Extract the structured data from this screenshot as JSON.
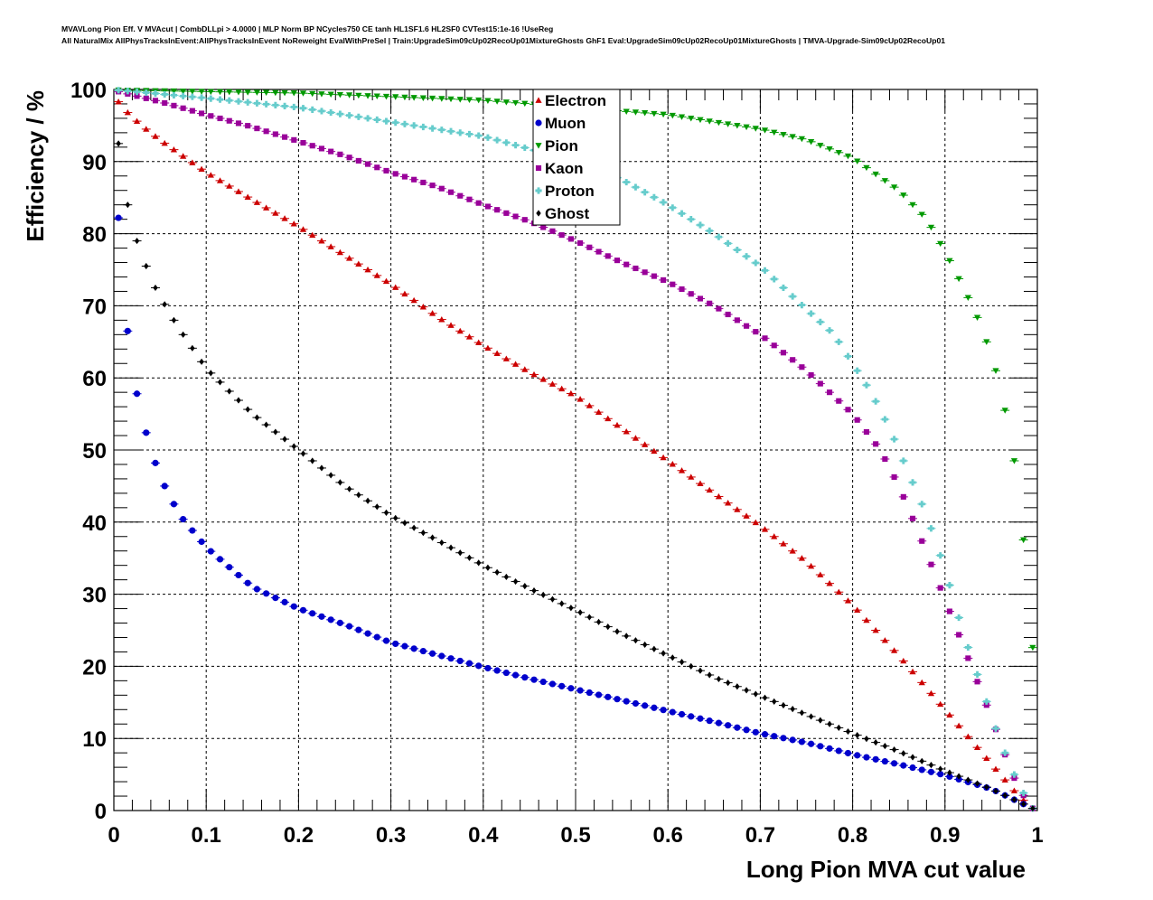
{
  "title_lines": [
    "MVAVLong Pion Eff. V MVAcut | CombDLLpi > 4.0000 | MLP Norm BP NCycles750 CE tanh HL1SF1.6 HL2SF0 CVTest15:1e-16 !UseReg",
    "All NaturalMix AllPhysTracksInEvent:AllPhysTracksInEvent NoReweight EvalWithPreSel | Train:UpgradeSim09cUp02RecoUp01MixtureGhosts GhF1 Eval:UpgradeSim09cUp02RecoUp01MixtureGhosts | TMVA-Upgrade-Sim09cUp02RecoUp01"
  ],
  "chart_data": {
    "type": "scatter",
    "xlabel": "Long Pion MVA cut value",
    "ylabel": "Efficiency / %",
    "xlim": [
      0,
      1
    ],
    "ylim": [
      0,
      100
    ],
    "x_ticks": [
      "0",
      "0.1",
      "0.2",
      "0.3",
      "0.4",
      "0.5",
      "0.6",
      "0.7",
      "0.8",
      "0.9",
      "1"
    ],
    "y_ticks": [
      "0",
      "10",
      "20",
      "30",
      "40",
      "50",
      "60",
      "70",
      "80",
      "90",
      "100"
    ],
    "grid": true,
    "legend_position": "top-center",
    "x_step": 0.01,
    "series": [
      {
        "name": "Electron",
        "color": "#cc0000",
        "marker": "triangle-up",
        "anchors": [
          [
            0.005,
            98.3
          ],
          [
            0.015,
            96.8
          ],
          [
            0.03,
            95.0
          ],
          [
            0.05,
            93.0
          ],
          [
            0.1,
            88.5
          ],
          [
            0.15,
            84.7
          ],
          [
            0.2,
            81.0
          ],
          [
            0.25,
            77.0
          ],
          [
            0.3,
            73.0
          ],
          [
            0.35,
            68.5
          ],
          [
            0.4,
            64.5
          ],
          [
            0.45,
            60.8
          ],
          [
            0.5,
            57.5
          ],
          [
            0.55,
            53.0
          ],
          [
            0.6,
            48.5
          ],
          [
            0.65,
            44.0
          ],
          [
            0.7,
            39.5
          ],
          [
            0.75,
            34.5
          ],
          [
            0.8,
            28.5
          ],
          [
            0.85,
            21.5
          ],
          [
            0.88,
            17.0
          ],
          [
            0.9,
            14.0
          ],
          [
            0.92,
            11.0
          ],
          [
            0.94,
            8.0
          ],
          [
            0.96,
            5.0
          ],
          [
            0.98,
            2.0
          ],
          [
            0.995,
            0.3
          ]
        ]
      },
      {
        "name": "Muon",
        "color": "#0000cc",
        "marker": "circle",
        "anchors": [
          [
            0.005,
            82.2
          ],
          [
            0.015,
            66.5
          ],
          [
            0.025,
            57.8
          ],
          [
            0.035,
            52.4
          ],
          [
            0.045,
            48.2
          ],
          [
            0.055,
            45.0
          ],
          [
            0.065,
            42.5
          ],
          [
            0.075,
            40.4
          ],
          [
            0.1,
            36.5
          ],
          [
            0.15,
            31.0
          ],
          [
            0.2,
            28.0
          ],
          [
            0.25,
            25.8
          ],
          [
            0.3,
            23.3
          ],
          [
            0.35,
            21.6
          ],
          [
            0.4,
            19.9
          ],
          [
            0.45,
            18.3
          ],
          [
            0.5,
            16.8
          ],
          [
            0.55,
            15.3
          ],
          [
            0.6,
            13.8
          ],
          [
            0.65,
            12.3
          ],
          [
            0.7,
            10.7
          ],
          [
            0.75,
            9.4
          ],
          [
            0.8,
            7.8
          ],
          [
            0.85,
            6.4
          ],
          [
            0.9,
            4.9
          ],
          [
            0.95,
            3.0
          ],
          [
            0.98,
            1.2
          ],
          [
            0.995,
            0.3
          ]
        ]
      },
      {
        "name": "Pion",
        "color": "#009900",
        "marker": "triangle-down",
        "anchors": [
          [
            0.005,
            99.9
          ],
          [
            0.1,
            99.7
          ],
          [
            0.2,
            99.5
          ],
          [
            0.3,
            99.0
          ],
          [
            0.4,
            98.5
          ],
          [
            0.5,
            97.5
          ],
          [
            0.6,
            96.5
          ],
          [
            0.7,
            94.5
          ],
          [
            0.75,
            93.0
          ],
          [
            0.8,
            90.5
          ],
          [
            0.85,
            86.0
          ],
          [
            0.88,
            82.0
          ],
          [
            0.9,
            77.5
          ],
          [
            0.92,
            72.5
          ],
          [
            0.94,
            67.0
          ],
          [
            0.96,
            59.0
          ],
          [
            0.98,
            45.0
          ],
          [
            0.995,
            22.6
          ]
        ]
      },
      {
        "name": "Kaon",
        "color": "#990099",
        "marker": "square",
        "anchors": [
          [
            0.005,
            99.7
          ],
          [
            0.05,
            98.3
          ],
          [
            0.1,
            96.5
          ],
          [
            0.15,
            94.8
          ],
          [
            0.2,
            92.8
          ],
          [
            0.25,
            90.8
          ],
          [
            0.3,
            88.5
          ],
          [
            0.35,
            86.5
          ],
          [
            0.4,
            84.0
          ],
          [
            0.45,
            81.7
          ],
          [
            0.5,
            79.0
          ],
          [
            0.55,
            76.0
          ],
          [
            0.6,
            73.3
          ],
          [
            0.65,
            70.0
          ],
          [
            0.7,
            66.0
          ],
          [
            0.75,
            61.0
          ],
          [
            0.8,
            55.0
          ],
          [
            0.83,
            50.0
          ],
          [
            0.85,
            45.0
          ],
          [
            0.87,
            39.0
          ],
          [
            0.89,
            32.5
          ],
          [
            0.91,
            26.0
          ],
          [
            0.93,
            19.5
          ],
          [
            0.95,
            13.0
          ],
          [
            0.96,
            9.5
          ],
          [
            0.97,
            6.0
          ],
          [
            0.98,
            3.0
          ],
          [
            0.995,
            0.3
          ]
        ]
      },
      {
        "name": "Proton",
        "color": "#66cccc",
        "marker": "cross",
        "anchors": [
          [
            0.005,
            99.9
          ],
          [
            0.1,
            98.8
          ],
          [
            0.2,
            97.5
          ],
          [
            0.3,
            95.5
          ],
          [
            0.4,
            93.5
          ],
          [
            0.5,
            90.0
          ],
          [
            0.55,
            87.5
          ],
          [
            0.6,
            84.0
          ],
          [
            0.65,
            80.0
          ],
          [
            0.7,
            75.5
          ],
          [
            0.75,
            69.5
          ],
          [
            0.78,
            66.0
          ],
          [
            0.8,
            62.0
          ],
          [
            0.82,
            58.0
          ],
          [
            0.84,
            53.0
          ],
          [
            0.86,
            47.0
          ],
          [
            0.88,
            41.0
          ],
          [
            0.9,
            33.5
          ],
          [
            0.92,
            24.5
          ],
          [
            0.94,
            17.0
          ],
          [
            0.96,
            9.5
          ],
          [
            0.98,
            3.5
          ],
          [
            0.995,
            0.3
          ]
        ]
      },
      {
        "name": "Ghost",
        "color": "#000000",
        "marker": "diamond",
        "anchors": [
          [
            0.005,
            92.5
          ],
          [
            0.015,
            84.0
          ],
          [
            0.025,
            79.0
          ],
          [
            0.035,
            75.5
          ],
          [
            0.045,
            72.5
          ],
          [
            0.055,
            70.2
          ],
          [
            0.065,
            68.0
          ],
          [
            0.075,
            66.0
          ],
          [
            0.1,
            61.3
          ],
          [
            0.15,
            55.0
          ],
          [
            0.2,
            50.0
          ],
          [
            0.25,
            45.0
          ],
          [
            0.3,
            40.9
          ],
          [
            0.35,
            37.5
          ],
          [
            0.4,
            34.0
          ],
          [
            0.45,
            30.8
          ],
          [
            0.5,
            27.8
          ],
          [
            0.55,
            24.5
          ],
          [
            0.6,
            21.5
          ],
          [
            0.65,
            18.5
          ],
          [
            0.7,
            15.9
          ],
          [
            0.75,
            13.3
          ],
          [
            0.8,
            10.7
          ],
          [
            0.85,
            8.2
          ],
          [
            0.9,
            5.5
          ],
          [
            0.95,
            3.0
          ],
          [
            0.98,
            1.2
          ],
          [
            0.995,
            0.3
          ]
        ]
      }
    ]
  }
}
